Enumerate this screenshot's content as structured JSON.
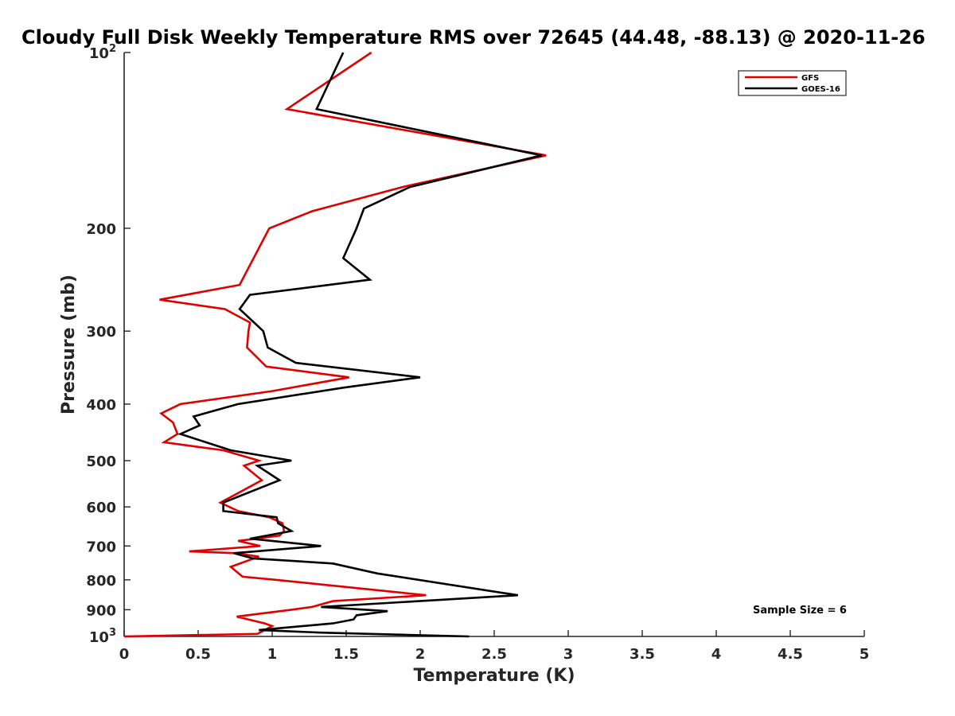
{
  "chart_data": {
    "type": "line",
    "title": "Cloudy Full Disk Weekly Temperature RMS over 72645 (44.48, -88.13) @ 2020-11-26",
    "xlabel": "Temperature (K)",
    "ylabel": "Pressure (mb)",
    "xlim": [
      0,
      5
    ],
    "ylim": [
      100,
      1000
    ],
    "yscale": "log",
    "y_reversed": true,
    "x_ticks": [
      "0",
      "0.5",
      "1",
      "1.5",
      "2",
      "2.5",
      "3",
      "3.5",
      "4",
      "4.5",
      "5"
    ],
    "y_ticks": [
      {
        "value": 100,
        "base": "10",
        "exp": "2"
      },
      {
        "value": 200,
        "label": "200"
      },
      {
        "value": 300,
        "label": "300"
      },
      {
        "value": 400,
        "label": "400"
      },
      {
        "value": 500,
        "label": "500"
      },
      {
        "value": 600,
        "label": "600"
      },
      {
        "value": 700,
        "label": "700"
      },
      {
        "value": 800,
        "label": "800"
      },
      {
        "value": 900,
        "label": "900"
      },
      {
        "value": 1000,
        "base": "10",
        "exp": "3"
      }
    ],
    "legend": {
      "position": "top-right"
    },
    "annotation": "Sample Size = 6",
    "series": [
      {
        "name": "GFS",
        "color": "#e00000",
        "points": [
          [
            1.67,
            100
          ],
          [
            1.1,
            125
          ],
          [
            2.85,
            150
          ],
          [
            1.88,
            170
          ],
          [
            1.27,
            187
          ],
          [
            0.98,
            200
          ],
          [
            0.78,
            250
          ],
          [
            0.24,
            265
          ],
          [
            0.68,
            275
          ],
          [
            0.85,
            290
          ],
          [
            0.84,
            300
          ],
          [
            0.83,
            320
          ],
          [
            0.96,
            345
          ],
          [
            1.52,
            360
          ],
          [
            1.0,
            380
          ],
          [
            0.38,
            400
          ],
          [
            0.25,
            415
          ],
          [
            0.33,
            430
          ],
          [
            0.36,
            450
          ],
          [
            0.27,
            465
          ],
          [
            0.67,
            480
          ],
          [
            0.91,
            500
          ],
          [
            0.81,
            510
          ],
          [
            0.93,
            540
          ],
          [
            0.65,
            590
          ],
          [
            0.77,
            610
          ],
          [
            0.98,
            625
          ],
          [
            1.07,
            640
          ],
          [
            1.08,
            660
          ],
          [
            1.05,
            672
          ],
          [
            0.77,
            686
          ],
          [
            0.92,
            700
          ],
          [
            0.44,
            715
          ],
          [
            0.75,
            720
          ],
          [
            0.91,
            730
          ],
          [
            0.72,
            760
          ],
          [
            0.8,
            790
          ],
          [
            1.03,
            800
          ],
          [
            1.34,
            815
          ],
          [
            2.04,
            850
          ],
          [
            1.41,
            870
          ],
          [
            1.27,
            890
          ],
          [
            1.13,
            900
          ],
          [
            0.76,
            925
          ],
          [
            0.95,
            950
          ],
          [
            1.0,
            960
          ],
          [
            0.9,
            990
          ],
          [
            0.0,
            1000
          ]
        ]
      },
      {
        "name": "GOES-16",
        "color": "#000000",
        "points": [
          [
            1.48,
            100
          ],
          [
            1.3,
            125
          ],
          [
            2.82,
            150
          ],
          [
            1.93,
            170
          ],
          [
            1.62,
            185
          ],
          [
            1.57,
            200
          ],
          [
            1.48,
            225
          ],
          [
            1.66,
            245
          ],
          [
            0.85,
            260
          ],
          [
            0.78,
            275
          ],
          [
            0.94,
            300
          ],
          [
            0.97,
            320
          ],
          [
            1.16,
            340
          ],
          [
            2.0,
            360
          ],
          [
            1.48,
            375
          ],
          [
            0.77,
            400
          ],
          [
            0.47,
            420
          ],
          [
            0.51,
            435
          ],
          [
            0.38,
            450
          ],
          [
            0.72,
            480
          ],
          [
            1.13,
            500
          ],
          [
            0.9,
            510
          ],
          [
            1.05,
            540
          ],
          [
            0.67,
            590
          ],
          [
            0.67,
            610
          ],
          [
            1.03,
            625
          ],
          [
            1.04,
            640
          ],
          [
            1.13,
            660
          ],
          [
            0.85,
            680
          ],
          [
            1.33,
            700
          ],
          [
            0.74,
            720
          ],
          [
            0.87,
            735
          ],
          [
            1.41,
            750
          ],
          [
            1.71,
            780
          ],
          [
            2.66,
            850
          ],
          [
            1.33,
            890
          ],
          [
            1.78,
            905
          ],
          [
            1.57,
            920
          ],
          [
            1.55,
            935
          ],
          [
            1.41,
            950
          ],
          [
            0.91,
            975
          ],
          [
            1.33,
            985
          ],
          [
            2.33,
            1000
          ]
        ]
      }
    ]
  }
}
